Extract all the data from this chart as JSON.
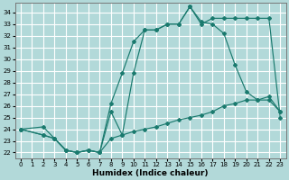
{
  "xlabel": "Humidex (Indice chaleur)",
  "xlim": [
    -0.5,
    23.5
  ],
  "ylim": [
    21.5,
    34.8
  ],
  "yticks": [
    22,
    23,
    24,
    25,
    26,
    27,
    28,
    29,
    30,
    31,
    32,
    33,
    34
  ],
  "xticks": [
    0,
    1,
    2,
    3,
    4,
    5,
    6,
    7,
    8,
    9,
    10,
    11,
    12,
    13,
    14,
    15,
    16,
    17,
    18,
    19,
    20,
    21,
    22,
    23
  ],
  "bg_color": "#b2d9d9",
  "grid_color": "#ffffff",
  "line_color": "#1a7a6e",
  "line1_x": [
    0,
    2,
    3,
    4,
    5,
    6,
    7,
    8,
    9,
    10,
    11,
    12,
    13,
    14,
    15,
    16,
    17,
    18,
    19,
    20,
    21,
    22,
    23
  ],
  "line1_y": [
    24.0,
    24.2,
    23.2,
    22.2,
    22.0,
    22.2,
    22.0,
    26.2,
    28.8,
    31.5,
    32.5,
    32.5,
    33.0,
    33.0,
    34.5,
    33.0,
    33.5,
    33.5,
    33.5,
    33.5,
    33.5,
    33.5,
    25.0
  ],
  "line2_x": [
    0,
    2,
    3,
    4,
    5,
    6,
    7,
    8,
    9,
    10,
    11,
    12,
    13,
    14,
    15,
    16,
    17,
    18,
    19,
    20,
    21,
    22,
    23
  ],
  "line2_y": [
    24.0,
    23.5,
    23.2,
    22.2,
    22.0,
    22.2,
    22.0,
    25.5,
    23.5,
    28.8,
    32.5,
    32.5,
    33.0,
    33.0,
    34.5,
    33.2,
    33.0,
    32.2,
    29.5,
    27.2,
    26.5,
    26.8,
    25.5
  ],
  "line3_x": [
    0,
    2,
    3,
    4,
    5,
    6,
    7,
    8,
    9,
    10,
    11,
    12,
    13,
    14,
    15,
    16,
    17,
    18,
    19,
    20,
    21,
    22,
    23
  ],
  "line3_y": [
    24.0,
    23.5,
    23.2,
    22.2,
    22.0,
    22.2,
    22.0,
    23.2,
    23.5,
    23.8,
    24.0,
    24.2,
    24.5,
    24.8,
    25.0,
    25.2,
    25.5,
    26.0,
    26.2,
    26.5,
    26.5,
    26.5,
    25.5
  ]
}
